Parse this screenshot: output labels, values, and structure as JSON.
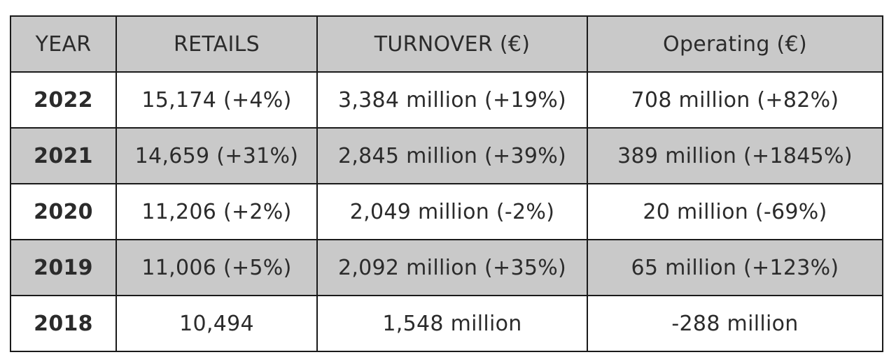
{
  "chart_data": {
    "type": "table",
    "columns": [
      "YEAR",
      "RETAILS",
      "TURNOVER (€)",
      "Operating (€)"
    ],
    "rows": [
      {
        "year": "2022",
        "retails": "15,174 (+4%)",
        "turnover": "3,384 million (+19%)",
        "operating": "708 million (+82%)"
      },
      {
        "year": "2021",
        "retails": "14,659 (+31%)",
        "turnover": "2,845 million (+39%)",
        "operating": "389 million (+1845%)"
      },
      {
        "year": "2020",
        "retails": "11,206 (+2%)",
        "turnover": "2,049 million (-2%)",
        "operating": "20 million (-69%)"
      },
      {
        "year": "2019",
        "retails": "11,006 (+5%)",
        "turnover": "2,092 million (+35%)",
        "operating": "65 million (+123%)"
      },
      {
        "year": "2018",
        "retails": "10,494",
        "turnover": "1,548 million",
        "operating": "-288 million"
      }
    ],
    "colors": {
      "header_fill": "#c9c9c9",
      "alt_row_fill": "#c9c9c9",
      "border": "#1a1a1a"
    }
  }
}
